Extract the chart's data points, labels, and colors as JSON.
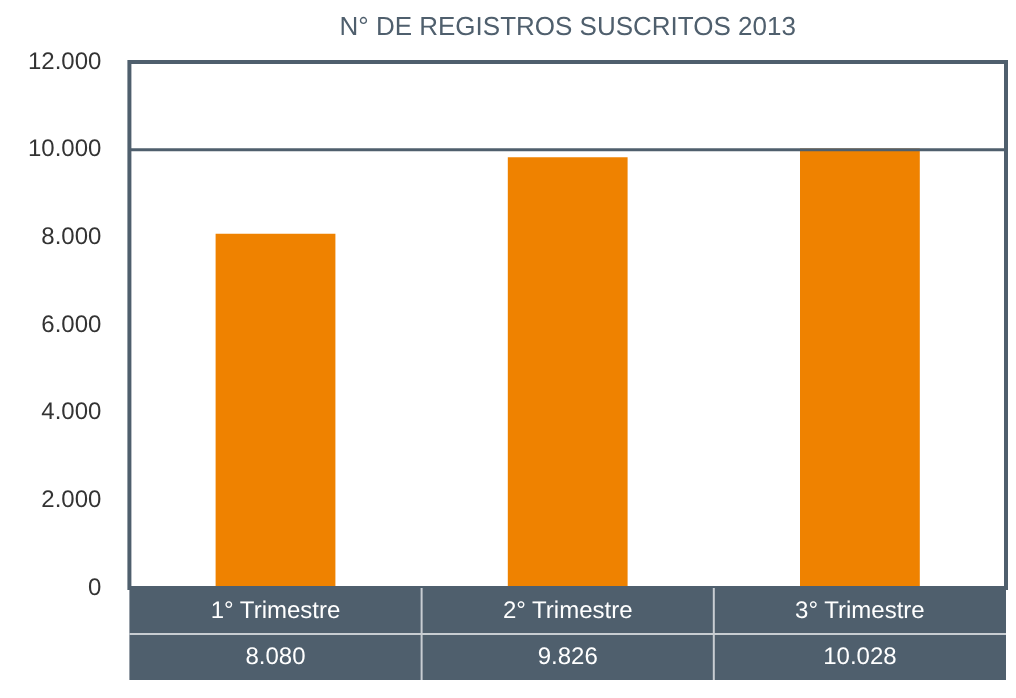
{
  "chart_data": {
    "type": "bar",
    "title": "N° DE REGISTROS SUSCRITOS 2013",
    "categories": [
      "1° Trimestre",
      "2° Trimestre",
      "3° Trimestre"
    ],
    "values": [
      8080,
      9826,
      10028
    ],
    "color": "#ef8200",
    "value_labels": [
      "8.080",
      "9.826",
      "10.028"
    ],
    "ylim": [
      0,
      12000
    ],
    "yticks": [
      {
        "value": 0,
        "label": "0"
      },
      {
        "value": 2000,
        "label": "2.000"
      },
      {
        "value": 4000,
        "label": "4.000"
      },
      {
        "value": 6000,
        "label": "6.000"
      },
      {
        "value": 8000,
        "label": "8.000"
      },
      {
        "value": 10000,
        "label": "10.000"
      },
      {
        "value": 12000,
        "label": "12.000"
      }
    ],
    "ref_lines": [
      {
        "axis": "y",
        "value": 10000,
        "color": "#4f5f6d"
      }
    ],
    "grid": false,
    "legend": false
  }
}
